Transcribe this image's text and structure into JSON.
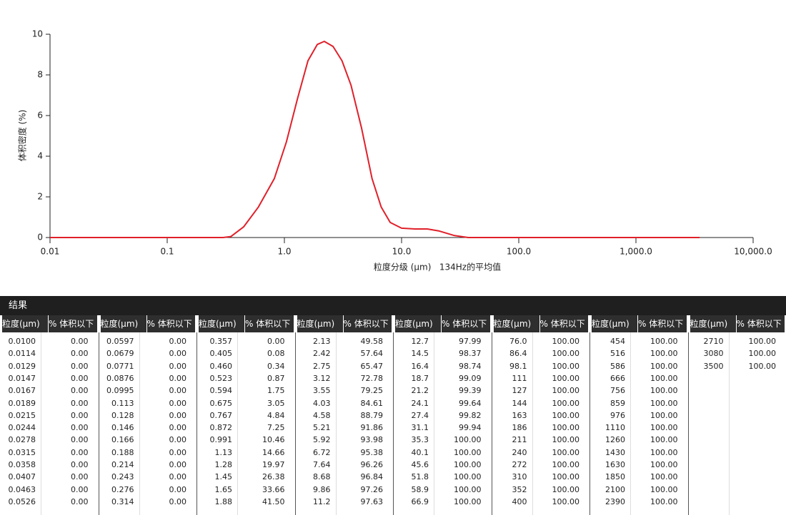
{
  "chart_data": {
    "type": "line",
    "ylabel": "体积密度 (%)",
    "xlabel": "粒度分级 (μm)   134Hz的平均值",
    "log_x": true,
    "xlim": [
      0.01,
      10000
    ],
    "xticks": [
      0.01,
      0.1,
      {
        "value": 1,
        "label": "1.0"
      },
      {
        "value": 10,
        "label": "10.0"
      },
      {
        "value": 100,
        "label": "100.0"
      },
      {
        "value": 1000,
        "label": "1,000.0"
      },
      {
        "value": 10000,
        "label": "10,000.0"
      }
    ],
    "ylim": [
      0,
      10
    ],
    "yticks": [
      0,
      2,
      4,
      6,
      8,
      10
    ],
    "series": [
      {
        "color": "#e0202a",
        "x": [
          0.01,
          0.1,
          0.3,
          0.35,
          0.45,
          0.6,
          0.82,
          1.04,
          1.29,
          1.59,
          1.91,
          2.19,
          2.6,
          3.1,
          3.7,
          4.55,
          5.6,
          6.7,
          8,
          10,
          13,
          16.6,
          21,
          28,
          37,
          100,
          1000,
          3500
        ],
        "values": [
          0,
          0,
          0,
          0.05,
          0.53,
          1.5,
          2.9,
          4.7,
          6.8,
          8.7,
          9.5,
          9.65,
          9.4,
          8.7,
          7.5,
          5.4,
          2.9,
          1.5,
          0.74,
          0.46,
          0.42,
          0.42,
          0.32,
          0.1,
          0,
          0,
          0,
          0
        ]
      }
    ]
  },
  "table": {
    "title": "结果",
    "headers": [
      "粒度(μm)",
      "% 体积以下",
      "粒度(μm)",
      "% 体积以下",
      "粒度(μm)",
      "% 体积以下",
      "粒度(μm)",
      "% 体积以下",
      "粒度(μm)",
      "% 体积以下",
      "粒度(μm)",
      "% 体积以下",
      "粒度(μm)",
      "% 体积以下",
      "粒度(μm)",
      "% 体积以下"
    ],
    "blocks": [
      {
        "size": [
          "0.0100",
          "0.0114",
          "0.0129",
          "0.0147",
          "0.0167",
          "0.0189",
          "0.0215",
          "0.0244",
          "0.0278",
          "0.0315",
          "0.0358",
          "0.0407",
          "0.0463",
          "0.0526"
        ],
        "percent": [
          "0.00",
          "0.00",
          "0.00",
          "0.00",
          "0.00",
          "0.00",
          "0.00",
          "0.00",
          "0.00",
          "0.00",
          "0.00",
          "0.00",
          "0.00",
          "0.00"
        ]
      },
      {
        "size": [
          "0.0597",
          "0.0679",
          "0.0771",
          "0.0876",
          "0.0995",
          "0.113",
          "0.128",
          "0.146",
          "0.166",
          "0.188",
          "0.214",
          "0.243",
          "0.276",
          "0.314"
        ],
        "percent": [
          "0.00",
          "0.00",
          "0.00",
          "0.00",
          "0.00",
          "0.00",
          "0.00",
          "0.00",
          "0.00",
          "0.00",
          "0.00",
          "0.00",
          "0.00",
          "0.00"
        ]
      },
      {
        "size": [
          "0.357",
          "0.405",
          "0.460",
          "0.523",
          "0.594",
          "0.675",
          "0.767",
          "0.872",
          "0.991",
          "1.13",
          "1.28",
          "1.45",
          "1.65",
          "1.88"
        ],
        "percent": [
          "0.00",
          "0.08",
          "0.34",
          "0.87",
          "1.75",
          "3.05",
          "4.84",
          "7.25",
          "10.46",
          "14.66",
          "19.97",
          "26.38",
          "33.66",
          "41.50"
        ]
      },
      {
        "size": [
          "2.13",
          "2.42",
          "2.75",
          "3.12",
          "3.55",
          "4.03",
          "4.58",
          "5.21",
          "5.92",
          "6.72",
          "7.64",
          "8.68",
          "9.86",
          "11.2"
        ],
        "percent": [
          "49.58",
          "57.64",
          "65.47",
          "72.78",
          "79.25",
          "84.61",
          "88.79",
          "91.86",
          "93.98",
          "95.38",
          "96.26",
          "96.84",
          "97.26",
          "97.63"
        ]
      },
      {
        "size": [
          "12.7",
          "14.5",
          "16.4",
          "18.7",
          "21.2",
          "24.1",
          "27.4",
          "31.1",
          "35.3",
          "40.1",
          "45.6",
          "51.8",
          "58.9",
          "66.9"
        ],
        "percent": [
          "97.99",
          "98.37",
          "98.74",
          "99.09",
          "99.39",
          "99.64",
          "99.82",
          "99.94",
          "100.00",
          "100.00",
          "100.00",
          "100.00",
          "100.00",
          "100.00"
        ]
      },
      {
        "size": [
          "76.0",
          "86.4",
          "98.1",
          "111",
          "127",
          "144",
          "163",
          "186",
          "211",
          "240",
          "272",
          "310",
          "352",
          "400"
        ],
        "percent": [
          "100.00",
          "100.00",
          "100.00",
          "100.00",
          "100.00",
          "100.00",
          "100.00",
          "100.00",
          "100.00",
          "100.00",
          "100.00",
          "100.00",
          "100.00",
          "100.00"
        ]
      },
      {
        "size": [
          "454",
          "516",
          "586",
          "666",
          "756",
          "859",
          "976",
          "1110",
          "1260",
          "1430",
          "1630",
          "1850",
          "2100",
          "2390"
        ],
        "percent": [
          "100.00",
          "100.00",
          "100.00",
          "100.00",
          "100.00",
          "100.00",
          "100.00",
          "100.00",
          "100.00",
          "100.00",
          "100.00",
          "100.00",
          "100.00",
          "100.00"
        ]
      },
      {
        "size": [
          "2710",
          "3080",
          "3500"
        ],
        "percent": [
          "100.00",
          "100.00",
          "100.00"
        ]
      }
    ]
  }
}
